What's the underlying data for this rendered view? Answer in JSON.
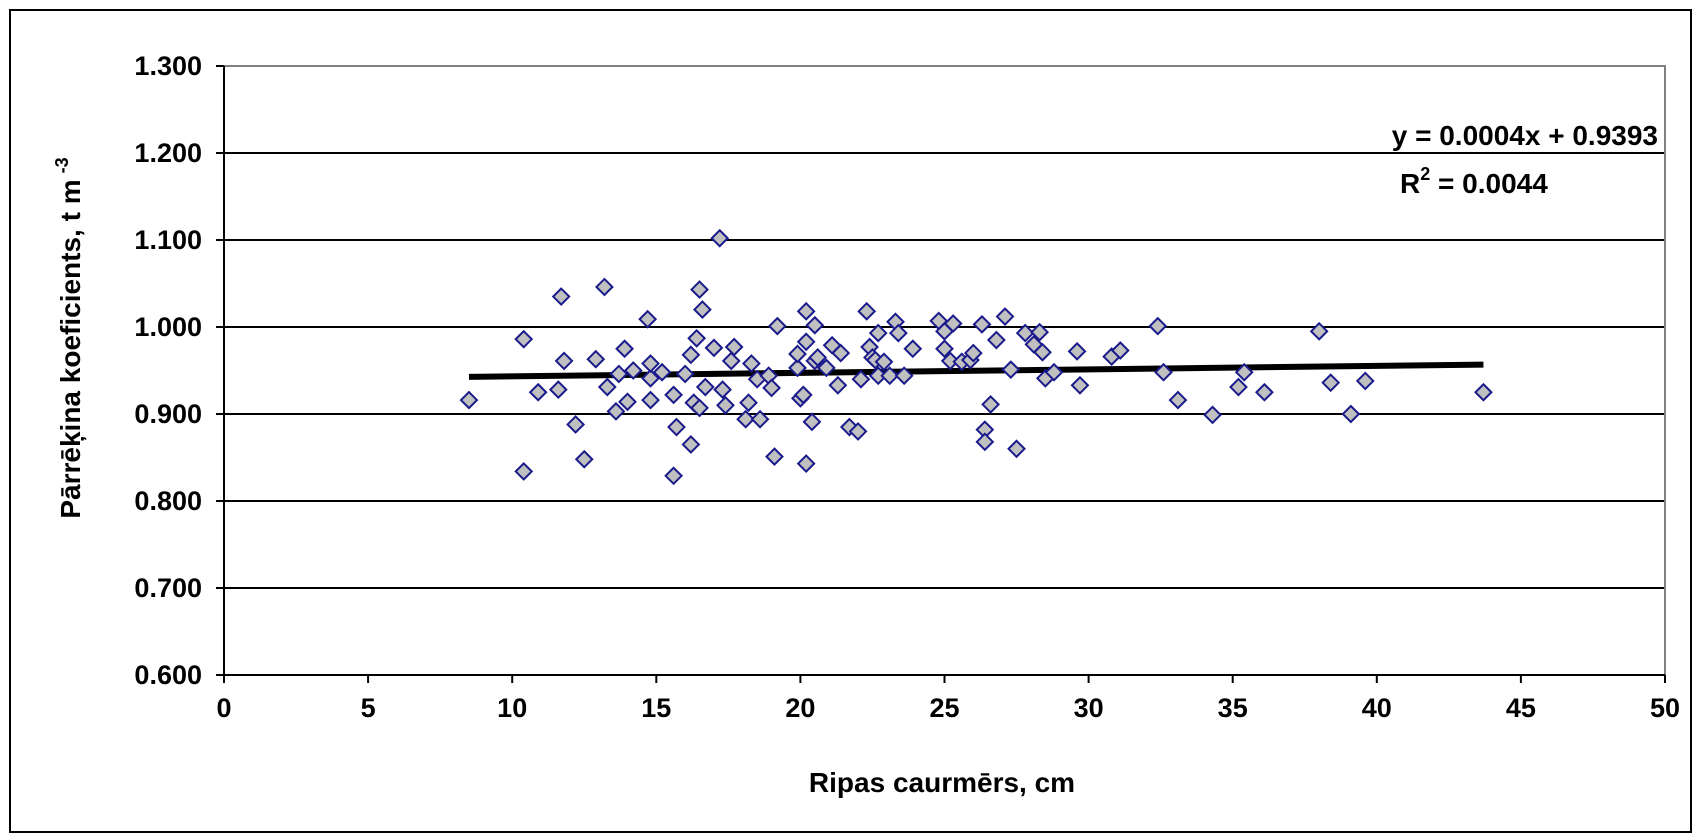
{
  "chart_data": {
    "type": "scatter",
    "xlabel": "Ripas caurmērs, cm",
    "ylabel": {
      "main": "Pārrēķina koeficients, t m",
      "sup": "-3"
    },
    "xlim": [
      0,
      50
    ],
    "ylim": [
      0.6,
      1.3
    ],
    "x_ticks": [
      "0",
      "5",
      "10",
      "15",
      "20",
      "25",
      "30",
      "35",
      "40",
      "45",
      "50"
    ],
    "y_ticks": [
      "0.600",
      "0.700",
      "0.800",
      "0.900",
      "1.000",
      "1.100",
      "1.200",
      "1.300"
    ],
    "grid": "horizontal",
    "colors": {
      "marker_fill": "#c0c0c0",
      "marker_stroke": "#1a1a8c",
      "trend": "#000000",
      "grid": "#000000"
    },
    "trendline": {
      "slope": 0.0004,
      "intercept": 0.9393,
      "x_range": [
        8.5,
        43.7
      ],
      "equation_label": "y = 0.0004x + 0.9393",
      "r2_label": {
        "pre": "R",
        "sup": "2",
        "post": " = 0.0044"
      }
    },
    "points": [
      [
        8.5,
        0.916
      ],
      [
        10.4,
        0.986
      ],
      [
        10.4,
        0.834
      ],
      [
        10.9,
        0.925
      ],
      [
        11.6,
        0.928
      ],
      [
        11.7,
        1.035
      ],
      [
        11.8,
        0.961
      ],
      [
        12.2,
        0.888
      ],
      [
        12.5,
        0.848
      ],
      [
        12.9,
        0.963
      ],
      [
        13.2,
        1.046
      ],
      [
        13.3,
        0.931
      ],
      [
        13.6,
        0.903
      ],
      [
        13.7,
        0.946
      ],
      [
        13.9,
        0.975
      ],
      [
        14.0,
        0.914
      ],
      [
        14.2,
        0.95
      ],
      [
        14.7,
        1.009
      ],
      [
        14.8,
        0.941
      ],
      [
        14.8,
        0.958
      ],
      [
        14.8,
        0.916
      ],
      [
        15.2,
        0.948
      ],
      [
        15.6,
        0.829
      ],
      [
        15.6,
        0.922
      ],
      [
        15.7,
        0.885
      ],
      [
        16.0,
        0.946
      ],
      [
        16.2,
        0.865
      ],
      [
        16.2,
        0.968
      ],
      [
        16.3,
        0.913
      ],
      [
        16.4,
        0.987
      ],
      [
        16.5,
        0.907
      ],
      [
        16.5,
        1.043
      ],
      [
        16.6,
        1.02
      ],
      [
        16.7,
        0.931
      ],
      [
        17.0,
        0.976
      ],
      [
        17.2,
        1.102
      ],
      [
        17.3,
        0.928
      ],
      [
        17.4,
        0.91
      ],
      [
        17.6,
        0.961
      ],
      [
        17.7,
        0.977
      ],
      [
        18.1,
        0.894
      ],
      [
        18.2,
        0.913
      ],
      [
        18.3,
        0.958
      ],
      [
        18.5,
        0.94
      ],
      [
        18.6,
        0.894
      ],
      [
        18.9,
        0.944
      ],
      [
        19.0,
        0.93
      ],
      [
        19.1,
        0.851
      ],
      [
        19.2,
        1.001
      ],
      [
        19.9,
        0.953
      ],
      [
        19.9,
        0.969
      ],
      [
        20.0,
        0.918
      ],
      [
        20.1,
        0.922
      ],
      [
        20.2,
        0.983
      ],
      [
        20.2,
        1.018
      ],
      [
        20.2,
        0.843
      ],
      [
        20.4,
        0.891
      ],
      [
        20.5,
        1.002
      ],
      [
        20.5,
        0.961
      ],
      [
        20.6,
        0.965
      ],
      [
        20.9,
        0.953
      ],
      [
        21.1,
        0.979
      ],
      [
        21.3,
        0.933
      ],
      [
        21.4,
        0.97
      ],
      [
        21.7,
        0.885
      ],
      [
        22.0,
        0.88
      ],
      [
        22.1,
        0.94
      ],
      [
        22.3,
        1.018
      ],
      [
        22.4,
        0.977
      ],
      [
        22.5,
        0.965
      ],
      [
        22.6,
        0.962
      ],
      [
        22.7,
        0.993
      ],
      [
        22.7,
        0.944
      ],
      [
        22.9,
        0.96
      ],
      [
        23.1,
        0.944
      ],
      [
        23.3,
        1.006
      ],
      [
        23.4,
        0.993
      ],
      [
        23.6,
        0.944
      ],
      [
        23.9,
        0.975
      ],
      [
        24.8,
        1.007
      ],
      [
        25.0,
        0.975
      ],
      [
        25.0,
        0.995
      ],
      [
        25.2,
        0.961
      ],
      [
        25.3,
        1.004
      ],
      [
        25.6,
        0.96
      ],
      [
        25.9,
        0.962
      ],
      [
        26.0,
        0.97
      ],
      [
        26.3,
        1.003
      ],
      [
        26.4,
        0.882
      ],
      [
        26.4,
        0.868
      ],
      [
        26.6,
        0.911
      ],
      [
        26.8,
        0.985
      ],
      [
        27.1,
        1.012
      ],
      [
        27.3,
        0.951
      ],
      [
        27.5,
        0.86
      ],
      [
        27.8,
        0.993
      ],
      [
        28.1,
        0.98
      ],
      [
        28.3,
        0.994
      ],
      [
        28.4,
        0.971
      ],
      [
        28.5,
        0.941
      ],
      [
        28.8,
        0.948
      ],
      [
        29.6,
        0.972
      ],
      [
        29.7,
        0.933
      ],
      [
        30.8,
        0.966
      ],
      [
        31.1,
        0.973
      ],
      [
        32.4,
        1.001
      ],
      [
        32.6,
        0.948
      ],
      [
        33.1,
        0.916
      ],
      [
        34.3,
        0.899
      ],
      [
        35.2,
        0.931
      ],
      [
        35.4,
        0.948
      ],
      [
        36.1,
        0.925
      ],
      [
        38.0,
        0.995
      ],
      [
        38.4,
        0.936
      ],
      [
        39.1,
        0.9
      ],
      [
        39.6,
        0.938
      ],
      [
        43.7,
        0.925
      ]
    ]
  }
}
